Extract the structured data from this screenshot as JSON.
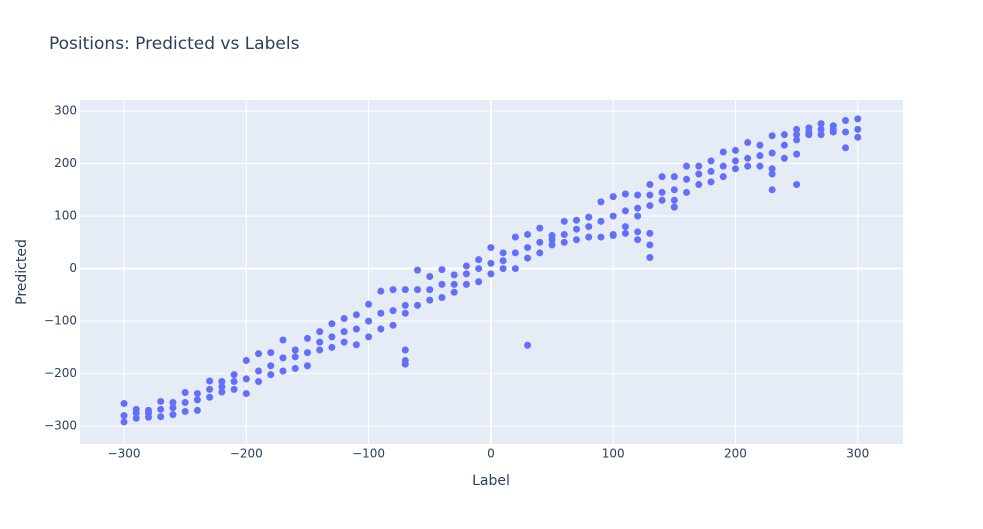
{
  "chart_data": {
    "type": "scatter",
    "title": "Positions: Predicted vs Labels",
    "x_label": "Label",
    "y_label": "Predicted",
    "color": "#636efa",
    "grid": true,
    "xlim": [
      -336,
      337
    ],
    "ylim": [
      -334,
      321
    ],
    "xticks": [
      {
        "value": -300,
        "label": "−300"
      },
      {
        "value": -200,
        "label": "−200"
      },
      {
        "value": -100,
        "label": "−100"
      },
      0,
      100,
      200,
      300
    ],
    "yticks": [
      {
        "value": -300,
        "label": "−300"
      },
      {
        "value": -200,
        "label": "−200"
      },
      {
        "value": -100,
        "label": "−100"
      },
      0,
      100,
      200,
      300
    ],
    "x": [
      -300,
      -300,
      -300,
      -290,
      -290,
      -290,
      -280,
      -280,
      -280,
      -270,
      -270,
      -270,
      -260,
      -260,
      -260,
      -250,
      -250,
      -250,
      -240,
      -240,
      -240,
      -230,
      -230,
      -230,
      -220,
      -220,
      -220,
      -210,
      -210,
      -210,
      -200,
      -200,
      -200,
      -190,
      -190,
      -190,
      -180,
      -180,
      -180,
      -170,
      -170,
      -170,
      -160,
      -160,
      -160,
      -150,
      -150,
      -150,
      -140,
      -140,
      -140,
      -130,
      -130,
      -130,
      -120,
      -120,
      -120,
      -110,
      -110,
      -110,
      -100,
      -100,
      -100,
      -90,
      -90,
      -90,
      -80,
      -80,
      -80,
      -70,
      -70,
      -70,
      -70,
      -70,
      -70,
      -60,
      -60,
      -60,
      -50,
      -50,
      -50,
      -40,
      -40,
      -40,
      -30,
      -30,
      -30,
      -20,
      -20,
      -20,
      -10,
      -10,
      -10,
      0,
      0,
      0,
      10,
      10,
      10,
      20,
      20,
      20,
      30,
      30,
      30,
      30,
      40,
      40,
      40,
      50,
      50,
      50,
      60,
      60,
      60,
      70,
      70,
      70,
      80,
      80,
      80,
      90,
      90,
      90,
      100,
      100,
      100,
      100,
      110,
      110,
      110,
      110,
      120,
      120,
      120,
      120,
      120,
      130,
      130,
      130,
      130,
      130,
      130,
      140,
      140,
      140,
      150,
      150,
      150,
      150,
      160,
      160,
      160,
      170,
      170,
      170,
      180,
      180,
      180,
      190,
      190,
      190,
      200,
      200,
      200,
      210,
      210,
      210,
      220,
      220,
      220,
      230,
      230,
      230,
      230,
      230,
      240,
      240,
      240,
      250,
      250,
      250,
      250,
      250,
      260,
      260,
      260,
      270,
      270,
      270,
      280,
      280,
      280,
      290,
      290,
      290,
      300,
      300,
      300
    ],
    "values": [
      -292,
      -280,
      -257,
      -285,
      -275,
      -268,
      -283,
      -275,
      -270,
      -282,
      -268,
      -253,
      -278,
      -265,
      -255,
      -272,
      -255,
      -236,
      -270,
      -250,
      -238,
      -245,
      -230,
      -214,
      -235,
      -225,
      -215,
      -230,
      -215,
      -202,
      -238,
      -210,
      -175,
      -215,
      -195,
      -162,
      -202,
      -185,
      -160,
      -195,
      -170,
      -136,
      -190,
      -168,
      -155,
      -185,
      -160,
      -133,
      -155,
      -140,
      -120,
      -150,
      -130,
      -105,
      -140,
      -120,
      -95,
      -145,
      -115,
      -88,
      -130,
      -100,
      -68,
      -115,
      -85,
      -43,
      -108,
      -80,
      -40,
      -85,
      -70,
      -40,
      -155,
      -175,
      -182,
      -70,
      -40,
      -3,
      -60,
      -40,
      -15,
      -55,
      -30,
      -2,
      -45,
      -30,
      -12,
      -30,
      -10,
      5,
      -25,
      0,
      17,
      -10,
      10,
      40,
      0,
      15,
      30,
      0,
      30,
      60,
      20,
      40,
      65,
      -146,
      30,
      50,
      77,
      45,
      55,
      63,
      50,
      65,
      90,
      55,
      75,
      92,
      60,
      80,
      98,
      60,
      90,
      127,
      65,
      100,
      137,
      63,
      80,
      110,
      142,
      67,
      100,
      115,
      140,
      55,
      70,
      120,
      140,
      160,
      21,
      45,
      67,
      130,
      145,
      175,
      130,
      150,
      175,
      117,
      145,
      170,
      195,
      160,
      180,
      195,
      165,
      185,
      205,
      175,
      195,
      222,
      190,
      205,
      225,
      195,
      210,
      240,
      195,
      215,
      235,
      190,
      220,
      253,
      150,
      180,
      210,
      235,
      255,
      245,
      255,
      265,
      160,
      218,
      255,
      260,
      268,
      255,
      265,
      276,
      260,
      265,
      272,
      230,
      260,
      282,
      250,
      265,
      285
    ]
  }
}
